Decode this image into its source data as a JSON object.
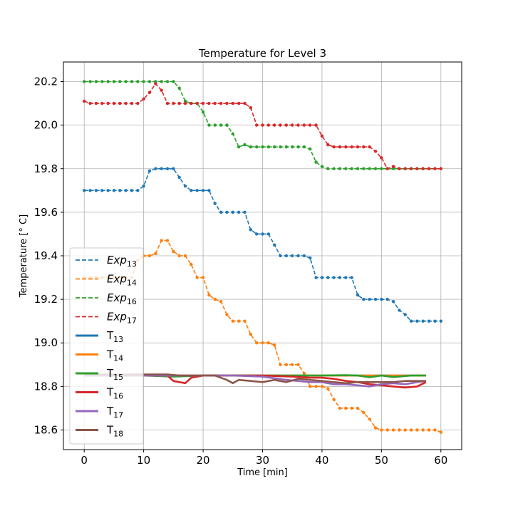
{
  "chart_data": {
    "type": "line",
    "title": "Temperature for Level 3",
    "xlabel": "Time [min]",
    "ylabel": "Temperature [° C]",
    "xlim": [
      -3.5,
      63.5
    ],
    "ylim": [
      18.51,
      20.29
    ],
    "xticks": [
      0,
      10,
      20,
      30,
      40,
      50,
      60
    ],
    "yticks": [
      18.6,
      18.8,
      19.0,
      19.2,
      19.4,
      19.6,
      19.8,
      20.0,
      20.2
    ],
    "grid": true,
    "legend_position": "lower-left",
    "series": [
      {
        "name": "Exp",
        "sub": "13",
        "style": "dashed-markers",
        "color": "#1f77b4",
        "x": [
          0,
          1,
          2,
          3,
          4,
          5,
          6,
          7,
          8,
          9,
          10,
          11,
          12,
          13,
          14,
          15,
          16,
          17,
          18,
          19,
          20,
          21,
          22,
          23,
          24,
          25,
          26,
          27,
          28,
          29,
          30,
          31,
          32,
          33,
          34,
          35,
          36,
          37,
          38,
          39,
          40,
          41,
          42,
          43,
          44,
          45,
          46,
          47,
          48,
          49,
          50,
          51,
          52,
          53,
          54,
          55,
          56,
          57,
          58,
          59,
          60
        ],
        "y": [
          19.7,
          19.7,
          19.7,
          19.7,
          19.7,
          19.7,
          19.7,
          19.7,
          19.7,
          19.7,
          19.72,
          19.79,
          19.8,
          19.8,
          19.8,
          19.8,
          19.76,
          19.72,
          19.7,
          19.7,
          19.7,
          19.7,
          19.64,
          19.6,
          19.6,
          19.6,
          19.6,
          19.6,
          19.52,
          19.5,
          19.5,
          19.5,
          19.45,
          19.4,
          19.4,
          19.4,
          19.4,
          19.4,
          19.39,
          19.3,
          19.3,
          19.3,
          19.3,
          19.3,
          19.3,
          19.3,
          19.22,
          19.2,
          19.2,
          19.2,
          19.2,
          19.2,
          19.19,
          19.15,
          19.13,
          19.1,
          19.1,
          19.1,
          19.1,
          19.1,
          19.1
        ]
      },
      {
        "name": "Exp",
        "sub": "14",
        "style": "dashed-markers",
        "color": "#ff7f0e",
        "x": [
          0,
          1,
          2,
          3,
          4,
          5,
          6,
          7,
          8,
          9,
          10,
          11,
          12,
          13,
          14,
          15,
          16,
          17,
          18,
          19,
          20,
          21,
          22,
          23,
          24,
          25,
          26,
          27,
          28,
          29,
          30,
          31,
          32,
          33,
          34,
          35,
          36,
          37,
          38,
          39,
          40,
          41,
          42,
          43,
          44,
          45,
          46,
          47,
          48,
          49,
          50,
          51,
          52,
          53,
          54,
          55,
          56,
          57,
          58,
          59,
          60
        ],
        "y": [
          19.3,
          19.3,
          19.3,
          19.3,
          19.3,
          19.3,
          19.3,
          19.3,
          19.3,
          19.38,
          19.4,
          19.4,
          19.41,
          19.47,
          19.47,
          19.42,
          19.4,
          19.4,
          19.36,
          19.3,
          19.3,
          19.22,
          19.2,
          19.19,
          19.13,
          19.1,
          19.1,
          19.1,
          19.04,
          19.0,
          19.0,
          19.0,
          18.99,
          18.9,
          18.9,
          18.9,
          18.9,
          18.86,
          18.8,
          18.8,
          18.8,
          18.79,
          18.74,
          18.7,
          18.7,
          18.7,
          18.7,
          18.68,
          18.65,
          18.61,
          18.6,
          18.6,
          18.6,
          18.6,
          18.6,
          18.6,
          18.6,
          18.6,
          18.6,
          18.6,
          18.59
        ]
      },
      {
        "name": "Exp",
        "sub": "16",
        "style": "dashed-markers",
        "color": "#2ca02c",
        "x": [
          0,
          1,
          2,
          3,
          4,
          5,
          6,
          7,
          8,
          9,
          10,
          11,
          12,
          13,
          14,
          15,
          16,
          17,
          18,
          19,
          20,
          21,
          22,
          23,
          24,
          25,
          26,
          27,
          28,
          29,
          30,
          31,
          32,
          33,
          34,
          35,
          36,
          37,
          38,
          39,
          40,
          41,
          42,
          43,
          44,
          45,
          46,
          47,
          48,
          49,
          50,
          51,
          52,
          53,
          54,
          55,
          56,
          57,
          58,
          59,
          60
        ],
        "y": [
          20.2,
          20.2,
          20.2,
          20.2,
          20.2,
          20.2,
          20.2,
          20.2,
          20.2,
          20.2,
          20.2,
          20.2,
          20.2,
          20.2,
          20.2,
          20.2,
          20.17,
          20.11,
          20.1,
          20.1,
          20.06,
          20.0,
          20.0,
          20.0,
          20.0,
          19.96,
          19.9,
          19.91,
          19.9,
          19.9,
          19.9,
          19.9,
          19.9,
          19.9,
          19.9,
          19.9,
          19.9,
          19.9,
          19.89,
          19.83,
          19.81,
          19.8,
          19.8,
          19.8,
          19.8,
          19.8,
          19.8,
          19.8,
          19.8,
          19.8,
          19.8,
          19.8,
          19.8,
          19.8,
          19.8,
          19.8,
          19.8,
          19.8,
          19.8,
          19.8,
          19.8
        ]
      },
      {
        "name": "Exp",
        "sub": "17",
        "style": "dashed-markers",
        "color": "#d62728",
        "x": [
          0,
          1,
          2,
          3,
          4,
          5,
          6,
          7,
          8,
          9,
          10,
          11,
          12,
          13,
          14,
          15,
          16,
          17,
          18,
          19,
          20,
          21,
          22,
          23,
          24,
          25,
          26,
          27,
          28,
          29,
          30,
          31,
          32,
          33,
          34,
          35,
          36,
          37,
          38,
          39,
          40,
          41,
          42,
          43,
          44,
          45,
          46,
          47,
          48,
          49,
          50,
          51,
          52,
          53,
          54,
          55,
          56,
          57,
          58,
          59,
          60
        ],
        "y": [
          20.11,
          20.1,
          20.1,
          20.1,
          20.1,
          20.1,
          20.1,
          20.1,
          20.1,
          20.1,
          20.12,
          20.15,
          20.19,
          20.16,
          20.1,
          20.1,
          20.1,
          20.1,
          20.1,
          20.1,
          20.1,
          20.1,
          20.1,
          20.1,
          20.1,
          20.1,
          20.1,
          20.1,
          20.08,
          20.0,
          20.0,
          20.0,
          20.0,
          20.0,
          20.0,
          20.0,
          20.0,
          20.0,
          20.0,
          20.0,
          19.95,
          19.91,
          19.9,
          19.9,
          19.9,
          19.9,
          19.9,
          19.9,
          19.9,
          19.88,
          19.85,
          19.8,
          19.81,
          19.8,
          19.8,
          19.8,
          19.8,
          19.8,
          19.8,
          19.8,
          19.8
        ]
      },
      {
        "name": "T",
        "sub": "13",
        "style": "solid",
        "color": "#1f77b4",
        "x": [
          0,
          5,
          10,
          15,
          20,
          25,
          30,
          35,
          40,
          45,
          50,
          55,
          57.5
        ],
        "y": [
          18.85,
          18.85,
          18.85,
          18.85,
          18.85,
          18.85,
          18.85,
          18.85,
          18.85,
          18.85,
          18.85,
          18.85,
          18.85
        ]
      },
      {
        "name": "T",
        "sub": "14",
        "style": "solid",
        "color": "#ff7f0e",
        "x": [
          0,
          5,
          10,
          15,
          20,
          25,
          30,
          35,
          40,
          45,
          50,
          55,
          57.5
        ],
        "y": [
          18.85,
          18.85,
          18.85,
          18.85,
          18.85,
          18.85,
          18.85,
          18.85,
          18.85,
          18.85,
          18.85,
          18.85,
          18.85
        ]
      },
      {
        "name": "T",
        "sub": "15",
        "style": "solid",
        "color": "#2ca02c",
        "x": [
          0,
          5,
          10,
          15,
          20,
          25,
          30,
          35,
          40,
          44,
          46,
          48,
          50,
          52,
          55,
          57.5
        ],
        "y": [
          18.85,
          18.85,
          18.85,
          18.845,
          18.85,
          18.85,
          18.85,
          18.85,
          18.85,
          18.852,
          18.85,
          18.842,
          18.85,
          18.843,
          18.85,
          18.85
        ]
      },
      {
        "name": "T",
        "sub": "16",
        "style": "solid",
        "color": "#d62728",
        "x": [
          0,
          5,
          10,
          14,
          15,
          16,
          17,
          18,
          20,
          25,
          30,
          35,
          38,
          40,
          42,
          44,
          46,
          48,
          50,
          52,
          54,
          56,
          57.5
        ],
        "y": [
          18.85,
          18.85,
          18.85,
          18.85,
          18.825,
          18.82,
          18.815,
          18.84,
          18.85,
          18.85,
          18.85,
          18.845,
          18.84,
          18.84,
          18.835,
          18.825,
          18.82,
          18.81,
          18.805,
          18.8,
          18.795,
          18.8,
          18.82
        ]
      },
      {
        "name": "T",
        "sub": "17",
        "style": "solid",
        "color": "#9467bd",
        "x": [
          0,
          5,
          10,
          15,
          20,
          25,
          30,
          34,
          36,
          38,
          40,
          42,
          44,
          46,
          48,
          50,
          52,
          54,
          56,
          57.5
        ],
        "y": [
          18.85,
          18.85,
          18.85,
          18.85,
          18.85,
          18.85,
          18.845,
          18.83,
          18.825,
          18.82,
          18.82,
          18.81,
          18.81,
          18.805,
          18.8,
          18.81,
          18.815,
          18.81,
          18.82,
          18.825
        ]
      },
      {
        "name": "T",
        "sub": "18",
        "style": "solid",
        "color": "#8c564b",
        "x": [
          0,
          5,
          10,
          14,
          16,
          18,
          20,
          22,
          24,
          25,
          26,
          28,
          30,
          32,
          34,
          36,
          38,
          40,
          42,
          44,
          46,
          48,
          50,
          52,
          54,
          56,
          57.5
        ],
        "y": [
          18.855,
          18.855,
          18.855,
          18.855,
          18.85,
          18.85,
          18.85,
          18.85,
          18.83,
          18.815,
          18.83,
          18.825,
          18.82,
          18.83,
          18.82,
          18.835,
          18.83,
          18.825,
          18.82,
          18.815,
          18.82,
          18.82,
          18.82,
          18.82,
          18.825,
          18.825,
          18.825
        ]
      }
    ]
  }
}
